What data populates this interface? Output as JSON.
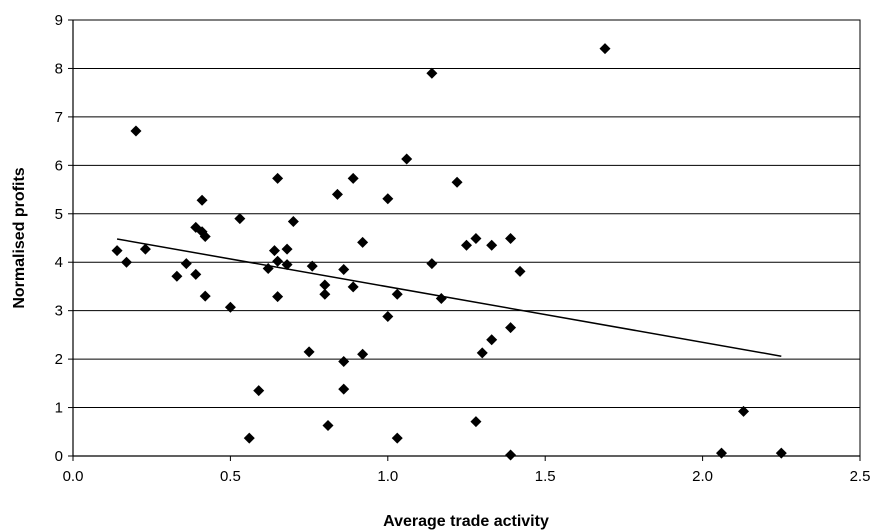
{
  "chart_data": {
    "type": "scatter",
    "title": "",
    "xlabel": "Average trade activity",
    "ylabel": "Normalised profits",
    "xlim": [
      0,
      2.5
    ],
    "ylim": [
      0,
      9
    ],
    "x_ticks": [
      "0.0",
      "0.5",
      "1.0",
      "1.5",
      "2.0",
      "2.5"
    ],
    "y_ticks": [
      "0",
      "1",
      "2",
      "3",
      "4",
      "5",
      "6",
      "7",
      "8",
      "9"
    ],
    "grid": "horizontal",
    "legend": "none",
    "marker": "diamond",
    "marker_color": "#000000",
    "series": [
      {
        "points": [
          [
            0.14,
            4.24
          ],
          [
            0.17,
            4.0
          ],
          [
            0.2,
            6.71
          ],
          [
            0.23,
            4.27
          ],
          [
            0.33,
            3.71
          ],
          [
            0.36,
            3.97
          ],
          [
            0.39,
            3.75
          ],
          [
            0.39,
            4.72
          ],
          [
            0.41,
            4.63
          ],
          [
            0.42,
            4.53
          ],
          [
            0.41,
            5.28
          ],
          [
            0.42,
            3.3
          ],
          [
            0.5,
            3.07
          ],
          [
            0.53,
            4.9
          ],
          [
            0.56,
            0.37
          ],
          [
            0.59,
            1.35
          ],
          [
            0.62,
            3.87
          ],
          [
            0.64,
            4.24
          ],
          [
            0.65,
            3.29
          ],
          [
            0.65,
            4.02
          ],
          [
            0.65,
            5.73
          ],
          [
            0.68,
            3.95
          ],
          [
            0.68,
            4.27
          ],
          [
            0.7,
            4.84
          ],
          [
            0.75,
            2.15
          ],
          [
            0.76,
            3.92
          ],
          [
            0.8,
            3.53
          ],
          [
            0.8,
            3.34
          ],
          [
            0.81,
            0.63
          ],
          [
            0.84,
            5.4
          ],
          [
            0.86,
            1.95
          ],
          [
            0.86,
            3.85
          ],
          [
            0.86,
            1.38
          ],
          [
            0.89,
            5.73
          ],
          [
            0.89,
            3.49
          ],
          [
            0.92,
            4.41
          ],
          [
            0.92,
            2.1
          ],
          [
            1.0,
            5.31
          ],
          [
            1.0,
            2.88
          ],
          [
            1.03,
            3.34
          ],
          [
            1.03,
            0.37
          ],
          [
            1.06,
            6.13
          ],
          [
            1.14,
            7.9
          ],
          [
            1.14,
            3.97
          ],
          [
            1.17,
            3.25
          ],
          [
            1.22,
            5.65
          ],
          [
            1.25,
            4.35
          ],
          [
            1.28,
            4.49
          ],
          [
            1.28,
            0.71
          ],
          [
            1.3,
            2.13
          ],
          [
            1.33,
            4.35
          ],
          [
            1.33,
            2.4
          ],
          [
            1.39,
            4.49
          ],
          [
            1.39,
            2.65
          ],
          [
            1.39,
            0.02
          ],
          [
            1.42,
            3.81
          ],
          [
            1.69,
            8.41
          ],
          [
            2.06,
            0.06
          ],
          [
            2.13,
            0.92
          ],
          [
            2.25,
            0.06
          ]
        ]
      }
    ],
    "trendline": {
      "type": "linear",
      "from": [
        0.14,
        4.48
      ],
      "to": [
        2.25,
        2.06
      ]
    }
  }
}
